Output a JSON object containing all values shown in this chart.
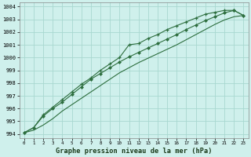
{
  "title": "Graphe pression niveau de la mer (hPa)",
  "bg_color": "#cff0ec",
  "grid_color": "#a8d8d0",
  "line_color": "#2d6e3e",
  "xlim": [
    -0.5,
    23.5
  ],
  "ylim": [
    993.7,
    1004.3
  ],
  "yticks": [
    994,
    995,
    996,
    997,
    998,
    999,
    1000,
    1001,
    1002,
    1003,
    1004
  ],
  "xticks": [
    0,
    1,
    2,
    3,
    4,
    5,
    6,
    7,
    8,
    9,
    10,
    11,
    12,
    13,
    14,
    15,
    16,
    17,
    18,
    19,
    20,
    21,
    22,
    23
  ],
  "line1_x": [
    0,
    1,
    2,
    3,
    4,
    5,
    6,
    7,
    8,
    9,
    10,
    11,
    12,
    13,
    14,
    15,
    16,
    17,
    18,
    19,
    20,
    21,
    22,
    23
  ],
  "line1_y": [
    994.1,
    994.5,
    995.5,
    996.1,
    996.7,
    997.3,
    997.9,
    998.4,
    999.0,
    999.5,
    1000.0,
    1001.0,
    1001.1,
    1001.5,
    1001.8,
    1002.2,
    1002.5,
    1002.8,
    1003.1,
    1003.4,
    1003.55,
    1003.7,
    1003.7,
    1003.3
  ],
  "line2_x": [
    0,
    1,
    2,
    3,
    4,
    5,
    6,
    7,
    8,
    9,
    10,
    11,
    12,
    13,
    14,
    15,
    16,
    17,
    18,
    19,
    20,
    21,
    22,
    23
  ],
  "line2_y": [
    994.1,
    994.5,
    995.4,
    996.0,
    996.5,
    997.1,
    997.7,
    998.3,
    998.75,
    999.2,
    999.65,
    1000.05,
    1000.4,
    1000.75,
    1001.1,
    1001.45,
    1001.8,
    1002.2,
    1002.55,
    1002.9,
    1003.2,
    1003.5,
    1003.7,
    1003.3
  ],
  "line3_x": [
    0,
    1,
    2,
    3,
    4,
    5,
    6,
    7,
    8,
    9,
    10,
    11,
    12,
    13,
    14,
    15,
    16,
    17,
    18,
    19,
    20,
    21,
    22,
    23
  ],
  "line3_y": [
    994.1,
    994.3,
    994.7,
    995.2,
    995.8,
    996.3,
    996.8,
    997.3,
    997.8,
    998.3,
    998.8,
    999.2,
    999.6,
    999.95,
    1000.3,
    1000.65,
    1001.0,
    1001.4,
    1001.8,
    1002.2,
    1002.6,
    1002.95,
    1003.2,
    1003.3
  ]
}
